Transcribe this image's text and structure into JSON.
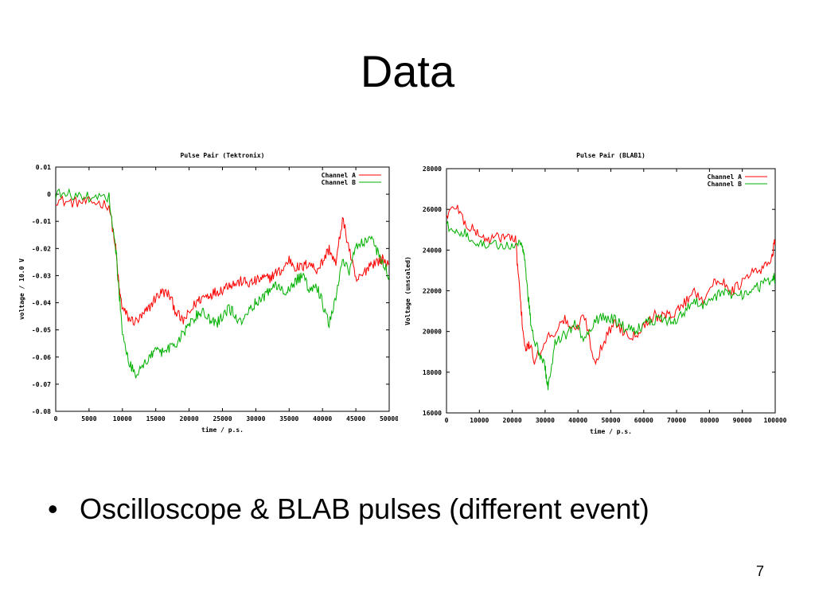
{
  "slide": {
    "title": "Data",
    "bullet_symbol": "•",
    "bullet": "Oscilloscope & BLAB pulses (different event)",
    "page_number": "7"
  },
  "colors": {
    "channel_a": "#ff0000",
    "channel_b": "#00b000",
    "axis": "#000000"
  },
  "chart_data": [
    {
      "type": "line",
      "title": "Pulse Pair (Tektronix)",
      "xlabel": "time / p.s.",
      "ylabel": "voltage / 10.0 V",
      "xlim": [
        0,
        50000
      ],
      "ylim": [
        -0.08,
        0.01
      ],
      "xticks": [
        0,
        5000,
        10000,
        15000,
        20000,
        25000,
        30000,
        35000,
        40000,
        45000,
        50000
      ],
      "xtick_labels": [
        "0",
        "5000",
        "10000",
        "15000",
        "20000",
        "25000",
        "30000",
        "35000",
        "40000",
        "45000",
        "50000"
      ],
      "yticks": [
        0.01,
        0,
        -0.01,
        -0.02,
        -0.03,
        -0.04,
        -0.05,
        -0.06,
        -0.07,
        -0.08
      ],
      "ytick_labels": [
        "0.01",
        "0",
        "-0.01",
        "-0.02",
        "-0.03",
        "-0.04",
        "-0.05",
        "-0.06",
        "-0.07",
        "-0.08"
      ],
      "legend": "top-right",
      "series": [
        {
          "name": "Channel A",
          "color": "#ff0000",
          "x": [
            0,
            2000,
            4000,
            6000,
            8000,
            9000,
            9500,
            10000,
            11000,
            12000,
            13000,
            14000,
            15000,
            16000,
            17000,
            18000,
            19000,
            20000,
            21000,
            22000,
            23000,
            24000,
            25000,
            26000,
            27000,
            28000,
            29000,
            30000,
            31000,
            32000,
            33000,
            34000,
            35000,
            36000,
            37000,
            38000,
            39000,
            40000,
            41000,
            42000,
            43000,
            44000,
            45000,
            46000,
            47000,
            48000,
            49000,
            50000
          ],
          "y": [
            -0.002,
            -0.003,
            -0.003,
            -0.003,
            -0.004,
            -0.02,
            -0.035,
            -0.042,
            -0.046,
            -0.047,
            -0.045,
            -0.042,
            -0.038,
            -0.036,
            -0.037,
            -0.043,
            -0.047,
            -0.044,
            -0.04,
            -0.038,
            -0.037,
            -0.036,
            -0.035,
            -0.033,
            -0.033,
            -0.032,
            -0.033,
            -0.032,
            -0.031,
            -0.031,
            -0.029,
            -0.028,
            -0.024,
            -0.027,
            -0.027,
            -0.025,
            -0.028,
            -0.025,
            -0.02,
            -0.026,
            -0.009,
            -0.02,
            -0.032,
            -0.03,
            -0.026,
            -0.025,
            -0.024,
            -0.026
          ]
        },
        {
          "name": "Channel B",
          "color": "#00b000",
          "x": [
            0,
            2000,
            4000,
            6000,
            8000,
            9000,
            9500,
            10000,
            11000,
            12000,
            13000,
            14000,
            15000,
            16000,
            17000,
            18000,
            19000,
            20000,
            21000,
            22000,
            23000,
            24000,
            25000,
            26000,
            27000,
            28000,
            29000,
            30000,
            31000,
            32000,
            33000,
            34000,
            35000,
            36000,
            37000,
            38000,
            39000,
            40000,
            41000,
            42000,
            43000,
            44000,
            45000,
            46000,
            47000,
            48000,
            49000,
            50000
          ],
          "y": [
            0,
            0,
            -0.001,
            -0.001,
            -0.001,
            -0.02,
            -0.036,
            -0.05,
            -0.062,
            -0.066,
            -0.064,
            -0.06,
            -0.058,
            -0.058,
            -0.057,
            -0.055,
            -0.052,
            -0.048,
            -0.045,
            -0.043,
            -0.046,
            -0.048,
            -0.045,
            -0.042,
            -0.045,
            -0.047,
            -0.042,
            -0.04,
            -0.038,
            -0.036,
            -0.033,
            -0.035,
            -0.036,
            -0.032,
            -0.03,
            -0.035,
            -0.033,
            -0.04,
            -0.048,
            -0.038,
            -0.025,
            -0.028,
            -0.02,
            -0.018,
            -0.015,
            -0.02,
            -0.025,
            -0.03
          ]
        }
      ]
    },
    {
      "type": "line",
      "title": "Pulse Pair (BLAB1)",
      "xlabel": "time / p.s.",
      "ylabel": "Voltage (unscaled)",
      "xlim": [
        0,
        100000
      ],
      "ylim": [
        16000,
        28000
      ],
      "xticks": [
        0,
        10000,
        20000,
        30000,
        40000,
        50000,
        60000,
        70000,
        80000,
        90000,
        100000
      ],
      "xtick_labels": [
        "0",
        "10000",
        "20000",
        "30000",
        "40000",
        "50000",
        "60000",
        "70000",
        "80000",
        "90000",
        "100000"
      ],
      "yticks": [
        28000,
        26000,
        24000,
        22000,
        20000,
        18000,
        16000
      ],
      "ytick_labels": [
        "28000",
        "26000",
        "24000",
        "22000",
        "20000",
        "18000",
        "16000"
      ],
      "legend": "top-right",
      "series": [
        {
          "name": "Channel A",
          "color": "#ff0000",
          "x": [
            0,
            3000,
            6000,
            9000,
            12000,
            15000,
            18000,
            21000,
            22000,
            23000,
            24000,
            25000,
            27000,
            30000,
            33000,
            36000,
            39000,
            42000,
            45000,
            48000,
            51000,
            54000,
            57000,
            60000,
            63000,
            66000,
            69000,
            72000,
            75000,
            78000,
            81000,
            84000,
            87000,
            90000,
            93000,
            96000,
            99000,
            100000
          ],
          "y": [
            25700,
            26200,
            25200,
            24900,
            24500,
            24600,
            24700,
            24500,
            22500,
            20500,
            19000,
            19400,
            18500,
            19600,
            20000,
            20600,
            20000,
            20800,
            18500,
            19500,
            20500,
            20000,
            19800,
            20300,
            20800,
            20700,
            20900,
            21300,
            22000,
            21600,
            22300,
            22500,
            22000,
            22400,
            22900,
            23000,
            23700,
            24500
          ]
        },
        {
          "name": "Channel B",
          "color": "#00b000",
          "x": [
            0,
            3000,
            6000,
            9000,
            12000,
            15000,
            18000,
            21000,
            23000,
            24000,
            25000,
            26000,
            28000,
            30000,
            31000,
            33000,
            36000,
            39000,
            42000,
            45000,
            48000,
            51000,
            54000,
            57000,
            60000,
            63000,
            66000,
            69000,
            72000,
            75000,
            78000,
            81000,
            84000,
            87000,
            90000,
            93000,
            96000,
            99000,
            100000
          ],
          "y": [
            25200,
            25000,
            24800,
            24200,
            24300,
            24300,
            24200,
            24300,
            24300,
            23200,
            21500,
            20000,
            19000,
            18200,
            17200,
            19500,
            19800,
            20300,
            19600,
            20500,
            20700,
            20600,
            20200,
            20000,
            20300,
            20600,
            20600,
            20400,
            20900,
            21600,
            21300,
            21700,
            21900,
            21800,
            21800,
            22000,
            22300,
            22600,
            22600
          ]
        }
      ]
    }
  ]
}
